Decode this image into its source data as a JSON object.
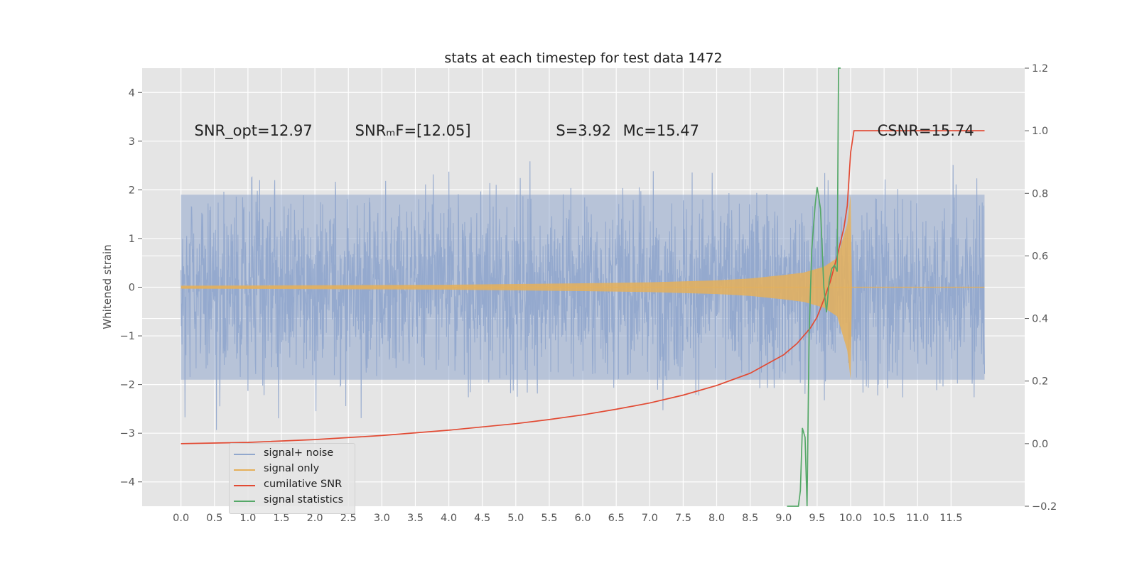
{
  "chart_data": {
    "type": "line",
    "title": "stats at each timestep for test data 1472",
    "ylabel": "Whitened strain",
    "xlabel": "",
    "x_ticks": [
      "0.0",
      "0.5",
      "1.0",
      "1.5",
      "2.0",
      "2.5",
      "3.0",
      "3.5",
      "4.0",
      "4.5",
      "5.0",
      "5.5",
      "6.0",
      "6.5",
      "7.0",
      "7.5",
      "8.0",
      "8.5",
      "9.0",
      "9.5",
      "10.0",
      "10.5",
      "11.0",
      "11.5"
    ],
    "xlim": [
      -0.58,
      12.6
    ],
    "ylim": [
      -4.5,
      4.5
    ],
    "y_ticks": [
      "4",
      "3",
      "2",
      "1",
      "0",
      "−1",
      "−2",
      "−3",
      "−4"
    ],
    "y2lim": [
      -0.2,
      1.2
    ],
    "y2_ticks": [
      "1.2",
      "1.0",
      "0.8",
      "0.6",
      "0.4",
      "0.2",
      "0.0",
      "−0.2"
    ],
    "grid": true,
    "legend_placement": "lower-left",
    "annotations": [
      {
        "text": "SNR_opt=12.97",
        "x": 0.2,
        "y": 3.2
      },
      {
        "text": "SNRₘF=[12.05]",
        "x": 2.6,
        "y": 3.2
      },
      {
        "text": "S=3.92",
        "x": 5.6,
        "y": 3.2
      },
      {
        "text": "Mᴄ=15.47",
        "x": 6.6,
        "y": 3.2
      },
      {
        "text": "CSNR=15.74",
        "x": 10.4,
        "y": 3.2
      }
    ],
    "series": [
      {
        "name": "signal+ noise",
        "color": "#92a8cd",
        "axis": "left",
        "description_values": {
          "x_range": [
            0.0,
            12.0
          ],
          "amplitude_approx": 3.0
        }
      },
      {
        "name": "signal only",
        "color": "#e5b05a",
        "axis": "left",
        "envelope": {
          "x": [
            0.0,
            2.0,
            4.0,
            6.0,
            7.0,
            8.0,
            8.5,
            9.0,
            9.3,
            9.6,
            9.8,
            9.95,
            10.0,
            10.02
          ],
          "y": [
            0.03,
            0.04,
            0.05,
            0.08,
            0.1,
            0.14,
            0.18,
            0.25,
            0.3,
            0.42,
            0.6,
            1.3,
            1.9,
            0.0
          ]
        }
      },
      {
        "name": "cumilative SNR",
        "color": "#e24a33",
        "axis": "right",
        "x": [
          0.0,
          1.0,
          2.0,
          3.0,
          4.0,
          5.0,
          5.5,
          6.0,
          6.5,
          7.0,
          7.5,
          8.0,
          8.5,
          9.0,
          9.2,
          9.4,
          9.5,
          9.6,
          9.7,
          9.8,
          9.9,
          9.95,
          10.0,
          10.05,
          12.0
        ],
        "y": [
          0.0,
          0.004,
          0.013,
          0.026,
          0.043,
          0.064,
          0.077,
          0.092,
          0.11,
          0.13,
          0.155,
          0.186,
          0.225,
          0.284,
          0.32,
          0.37,
          0.405,
          0.46,
          0.52,
          0.6,
          0.69,
          0.76,
          0.93,
          1.0,
          1.0
        ]
      },
      {
        "name": "signal statistics",
        "color": "#55a868",
        "axis": "right",
        "x": [
          9.05,
          9.08,
          9.15,
          9.22,
          9.25,
          9.28,
          9.32,
          9.35,
          9.38,
          9.42,
          9.47,
          9.5,
          9.55,
          9.6,
          9.64,
          9.68,
          9.72,
          9.76,
          9.8,
          9.82,
          9.85
        ],
        "y": [
          -0.2,
          -0.2,
          -0.25,
          -0.22,
          -0.15,
          0.05,
          0.02,
          -0.2,
          0.35,
          0.62,
          0.76,
          0.82,
          0.75,
          0.5,
          0.42,
          0.52,
          0.56,
          0.57,
          0.55,
          1.2,
          1.2
        ]
      }
    ]
  }
}
